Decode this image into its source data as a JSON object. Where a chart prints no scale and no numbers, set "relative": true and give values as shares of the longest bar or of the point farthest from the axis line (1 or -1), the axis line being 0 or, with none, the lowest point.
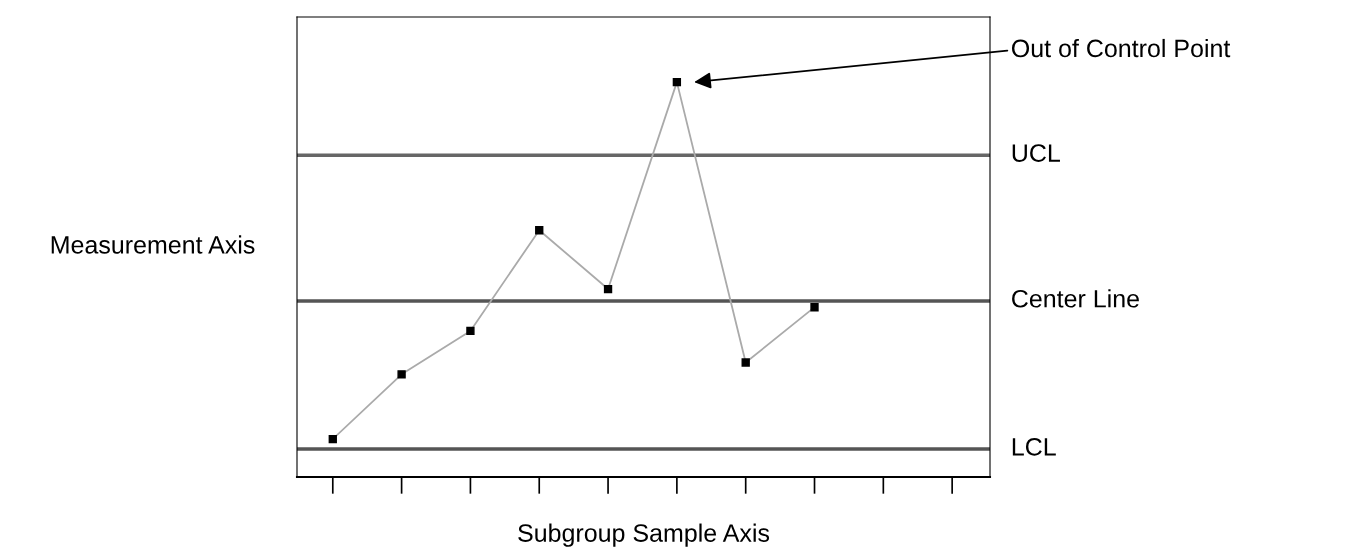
{
  "chart_data": {
    "type": "line",
    "relative": true,
    "xlabel": "Subgroup Sample Axis",
    "ylabel": "Measurement Axis",
    "categories": [
      null,
      null,
      null,
      null,
      null,
      null,
      null,
      null,
      null,
      null
    ],
    "series": [
      {
        "color": "#aaaaaa",
        "values": [
          0.096,
          0.26,
          0.37,
          0.625,
          0.476,
          1,
          0.29,
          0.43,
          null,
          null
        ]
      }
    ],
    "marker": "square",
    "line_style": "solid",
    "grid": false,
    "legend": false,
    "ref_lines": [
      {
        "axis": "y",
        "value": 0.815,
        "label": "UCL",
        "color": "#666666"
      },
      {
        "axis": "y",
        "value": 0.446,
        "label": "Center Line",
        "color": "#555555"
      },
      {
        "axis": "y",
        "value": 0.071,
        "label": "LCL",
        "color": "#555555"
      }
    ],
    "annotations": [
      "Out of Control Point"
    ]
  }
}
